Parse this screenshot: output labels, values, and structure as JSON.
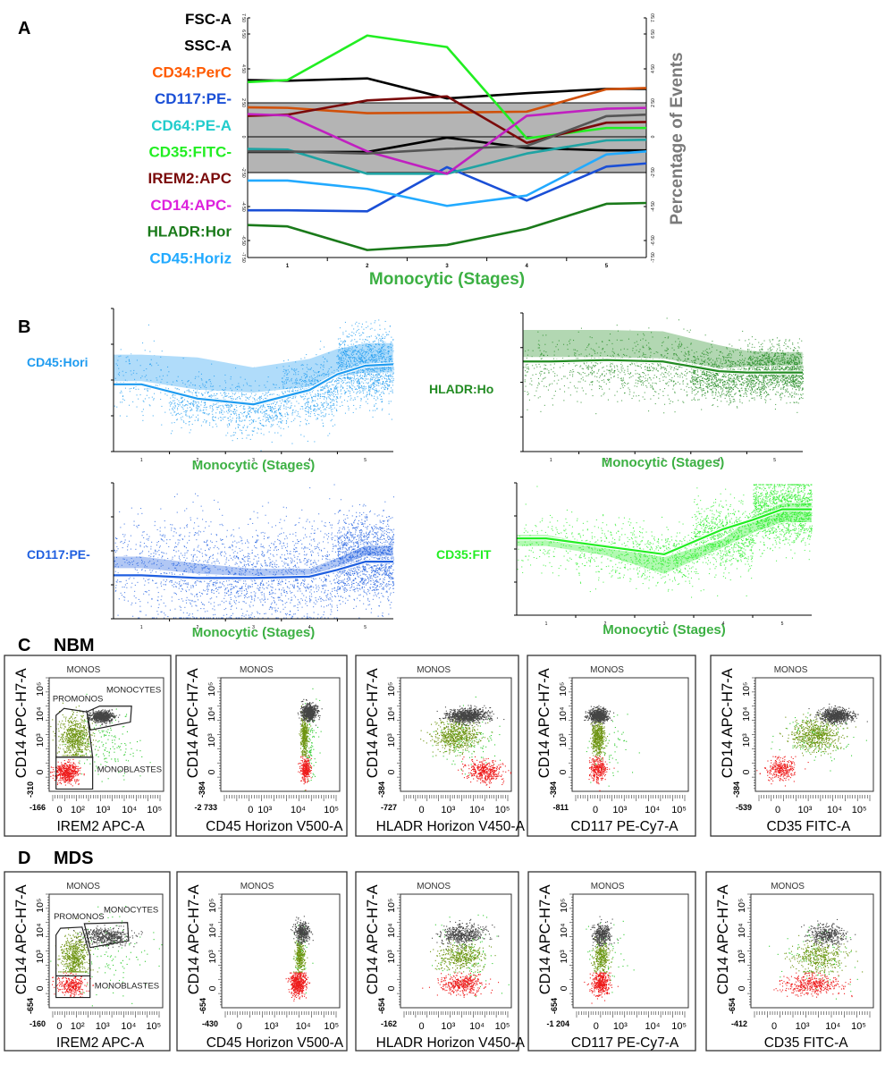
{
  "panel_labels": {
    "a": "A",
    "b": "B",
    "c": "C",
    "d": "D",
    "c_group": "NBM",
    "d_group": "MDS"
  },
  "population_colors": {
    "MONOCYTES": "#454545",
    "PROMONOS": "#6e9412",
    "MONOBLASTES": "#ee1c1c",
    "ungated": "#33cc33"
  },
  "chart_data": [
    {
      "type": "line",
      "title": "",
      "xlabel": "Monocytic (Stages)",
      "ylabel_right": "Percentage of Events",
      "x": [
        0.5,
        1,
        2,
        3,
        4,
        5,
        5.5
      ],
      "xlim": [
        0.5,
        5.5
      ],
      "xticks": [
        "1",
        "2",
        "3",
        "4",
        "5"
      ],
      "ytick_values": [
        -750,
        -650,
        -450,
        -250,
        0,
        250,
        450,
        650,
        750
      ],
      "yticks": [
        "-7 50",
        "-6 50",
        "-4 50",
        "-2 50",
        "0",
        "2 50",
        "4 50",
        "6 50",
        "7 50"
      ],
      "ylim": [
        -750,
        750
      ],
      "band": [
        -250,
        250
      ],
      "band_color": "#b4b4b4",
      "series": [
        {
          "name": "FSC-A",
          "color": "#000000",
          "values": [
            384,
            380,
            394,
            276,
            307,
            332,
            332
          ]
        },
        {
          "name": "SSC-A",
          "color": "#000000",
          "values": [
            -106,
            -106,
            -106,
            -6,
            -78,
            -95,
            -95
          ]
        },
        {
          "name": "CD34:PerC",
          "color": "#ff5a00",
          "line_color": "#d0500a",
          "values": [
            217,
            213,
            174,
            178,
            185,
            330,
            337
          ]
        },
        {
          "name": "CD117:PE-",
          "color": "#1a4fd6",
          "values": [
            -472,
            -472,
            -478,
            -212,
            -415,
            -208,
            -186
          ]
        },
        {
          "name": "CD64:PE-A",
          "color": "#22cccc",
          "line_color": "#1fa3a3",
          "values": [
            -85,
            -89,
            -257,
            -257,
            -117,
            -25,
            -21
          ]
        },
        {
          "name": "CD35:FITC-",
          "color": "#22ee22",
          "values": [
            372,
            384,
            641,
            575,
            -11,
            65,
            65
          ]
        },
        {
          "name": "IREM2:APC",
          "color": "#7a0a0a",
          "values": [
            154,
            163,
            264,
            288,
            -42,
            104,
            109
          ]
        },
        {
          "name": "CD14:APC-",
          "color": "#dd22dd",
          "line_color": "#c020c0",
          "values": [
            167,
            157,
            -102,
            -257,
            154,
            207,
            213
          ]
        },
        {
          "name": "HLADR:Hor",
          "color": "#1a7a1a",
          "values": [
            -559,
            -567,
            -706,
            -676,
            -581,
            -434,
            -429
          ]
        },
        {
          "name": "CD45:Horiz",
          "color": "#22aaff",
          "values": [
            -297,
            -297,
            -346,
            -446,
            -385,
            -123,
            -102
          ]
        },
        {
          "color": "#555555",
          "values": [
            -102,
            -102,
            -117,
            -85,
            -64,
            152,
            163
          ]
        }
      ]
    },
    {
      "type": "scatter",
      "label": "CD45:Hori",
      "xlabel": "Monocytic (Stages)",
      "color": "#1e9bf0",
      "xlim": [
        0.5,
        5.5
      ],
      "xticks": [
        "1",
        "2",
        "3",
        "4",
        "5"
      ],
      "ylim": [
        0,
        100
      ],
      "x": [
        0.5,
        1,
        2,
        3,
        4,
        4.5,
        5,
        5.5
      ],
      "median": [
        47,
        47,
        37,
        33,
        43,
        54,
        60,
        61
      ],
      "band_upper": [
        68,
        68,
        66,
        59,
        65,
        72,
        76,
        76
      ],
      "band_lower": [
        49,
        49,
        43,
        41,
        45,
        52,
        55,
        55
      ],
      "stage_center": [
        50,
        35,
        30,
        42,
        60
      ],
      "stage_spread": [
        12,
        9,
        9,
        11,
        12
      ],
      "stage_events": [
        150,
        400,
        500,
        650,
        1300
      ]
    },
    {
      "type": "scatter",
      "label": "HLADR:Ho",
      "xlabel": "Monocytic (Stages)",
      "color": "#228b22",
      "xlim": [
        0.5,
        5.5
      ],
      "xticks": [
        "1",
        "2",
        "3",
        "4",
        "5"
      ],
      "ylim": [
        0,
        100
      ],
      "x": [
        0.5,
        1,
        2,
        3,
        4,
        4.5,
        5,
        5.5
      ],
      "median": [
        65,
        65,
        66,
        65,
        58,
        57,
        57,
        57
      ],
      "band_upper": [
        88,
        88,
        88,
        87,
        77,
        73,
        72,
        72
      ],
      "band_lower": [
        68,
        68,
        68,
        67,
        60,
        61,
        62,
        62
      ],
      "stage_center": [
        60,
        62,
        60,
        55,
        58
      ],
      "stage_spread": [
        11,
        11,
        12,
        9,
        9
      ],
      "stage_events": [
        200,
        300,
        400,
        900,
        1400
      ]
    },
    {
      "type": "scatter",
      "label": "CD117:PE-",
      "xlabel": "Monocytic (Stages)",
      "color": "#1f5fe0",
      "xlim": [
        0.5,
        5.5
      ],
      "xticks": [
        "1",
        "2",
        "3",
        "4",
        "5"
      ],
      "ylim": [
        0,
        100
      ],
      "x": [
        0.5,
        1,
        2,
        3,
        4,
        4.5,
        5,
        5.5
      ],
      "median": [
        32,
        32,
        30,
        30,
        31,
        36,
        42,
        42
      ],
      "band_upper": [
        46,
        46,
        41,
        37,
        37,
        45,
        54,
        54
      ],
      "band_lower": [
        37,
        37,
        33,
        31,
        31,
        38,
        46,
        46
      ],
      "stage_center": [
        38,
        35,
        33,
        34,
        45
      ],
      "stage_spread": [
        20,
        20,
        18,
        18,
        15
      ],
      "stage_events": [
        300,
        500,
        600,
        600,
        1500
      ]
    },
    {
      "type": "scatter",
      "label": "CD35:FIT",
      "xlabel": "Monocytic (Stages)",
      "color": "#22ee22",
      "xlim": [
        0.5,
        5.5
      ],
      "xticks": [
        "1",
        "2",
        "3",
        "4",
        "5"
      ],
      "ylim": [
        0,
        100
      ],
      "x": [
        0.5,
        1,
        2,
        3,
        4,
        4.5,
        5,
        5.5
      ],
      "median": [
        58,
        58,
        52,
        46,
        65,
        72,
        80,
        80
      ],
      "band_upper": [
        61,
        61,
        52,
        44,
        58,
        75,
        85,
        85
      ],
      "band_lower": [
        52,
        52,
        45,
        31,
        51,
        62,
        70,
        70
      ],
      "stage_center": [
        55,
        48,
        44,
        60,
        80
      ],
      "stage_spread": [
        12,
        12,
        10,
        12,
        12
      ],
      "stage_events": [
        150,
        300,
        500,
        900,
        1500
      ]
    },
    {
      "type": "scatter",
      "gate": "MONOS",
      "ylabel": "CD14 APC-H7-A",
      "yticks": [
        "10⁵",
        "10⁴",
        "10³",
        "0"
      ],
      "ymin": "-310",
      "xlabel": "IREM2 APC-A",
      "xticks": [
        "0",
        "10²",
        "10³",
        "10⁴",
        "10⁵"
      ],
      "xmin": "-166",
      "gates": [
        "PROMONOS",
        "MONOCYTES",
        "MONOBLASTES"
      ]
    },
    {
      "type": "scatter",
      "gate": "MONOS",
      "ylabel": "CD14 APC-H7-A",
      "yticks": [
        "10⁵",
        "10⁴",
        "10³",
        "0"
      ],
      "ymin": "-384",
      "xlabel": "CD45 Horizon V500-A",
      "xticks": [
        "0",
        "10³",
        "10⁴",
        "10⁵"
      ],
      "xmin": "-2 733"
    },
    {
      "type": "scatter",
      "gate": "MONOS",
      "ylabel": "CD14 APC-H7-A",
      "yticks": [
        "10⁵",
        "10⁴",
        "10³",
        "0"
      ],
      "ymin": "-384",
      "xlabel": "HLADR Horizon V450-A",
      "xticks": [
        "0",
        "10³",
        "10⁴",
        "10⁵"
      ],
      "xmin": "-727"
    },
    {
      "type": "scatter",
      "gate": "MONOS",
      "ylabel": "CD14 APC-H7-A",
      "yticks": [
        "10⁵",
        "10⁴",
        "10³",
        "0"
      ],
      "ymin": "-384",
      "xlabel": "CD117 PE-Cy7-A",
      "xticks": [
        "0",
        "10³",
        "10⁴",
        "10⁵"
      ],
      "xmin": "-811"
    },
    {
      "type": "scatter",
      "gate": "MONOS",
      "ylabel": "CD14 APC-H7-A",
      "yticks": [
        "10⁵",
        "10⁴",
        "10³",
        "0"
      ],
      "ymin": "-384",
      "xlabel": "CD35 FITC-A",
      "xticks": [
        "0",
        "10³",
        "10⁴",
        "10⁵"
      ],
      "xmin": "-539"
    },
    {
      "type": "scatter",
      "gate": "MONOS",
      "ylabel": "CD14 APC-H7-A",
      "yticks": [
        "10⁵",
        "10⁴",
        "10³",
        "0"
      ],
      "ymin": "-654",
      "xlabel": "IREM2 APC-A",
      "xticks": [
        "0",
        "10²",
        "10³",
        "10⁴",
        "10⁵"
      ],
      "xmin": "-160",
      "gates": [
        "PROMONOS",
        "MONOCYTES",
        "MONOBLASTES"
      ]
    },
    {
      "type": "scatter",
      "gate": "MONOS",
      "ylabel": "CD14 APC-H7-A",
      "yticks": [
        "10⁵",
        "10⁴",
        "10³",
        "0"
      ],
      "ymin": "-654",
      "xlabel": "CD45 Horizon V500-A",
      "xticks": [
        "0",
        "10³",
        "10⁴",
        "10⁵"
      ],
      "xmin": "-430"
    },
    {
      "type": "scatter",
      "gate": "MONOS",
      "ylabel": "CD14 APC-H7-A",
      "yticks": [
        "10⁵",
        "10⁴",
        "10³",
        "0"
      ],
      "ymin": "-654",
      "xlabel": "HLADR Horizon V450-A",
      "xticks": [
        "0",
        "10³",
        "10⁴",
        "10⁵"
      ],
      "xmin": "-162"
    },
    {
      "type": "scatter",
      "gate": "MONOS",
      "ylabel": "CD14 APC-H7-A",
      "yticks": [
        "10⁵",
        "10⁴",
        "10³",
        "0"
      ],
      "ymin": "-654",
      "xlabel": "CD117 PE-Cy7-A",
      "xticks": [
        "0",
        "10³",
        "10⁴",
        "10⁵"
      ],
      "xmin": "-1 204"
    },
    {
      "type": "scatter",
      "gate": "MONOS",
      "ylabel": "CD14 APC-H7-A",
      "yticks": [
        "10⁵",
        "10⁴",
        "10³",
        "0"
      ],
      "ymin": "-654",
      "xlabel": "CD35 FITC-A",
      "xticks": [
        "0",
        "10³",
        "10⁴",
        "10⁵"
      ],
      "xmin": "-412"
    }
  ]
}
